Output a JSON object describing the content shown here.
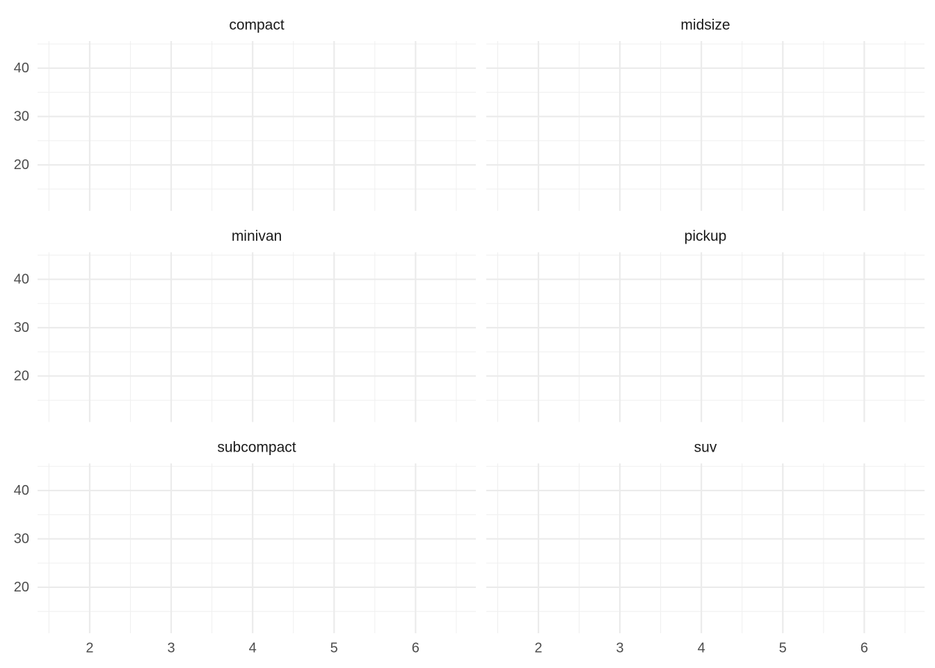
{
  "chart_data": [
    {
      "type": "scatter",
      "title": "compact",
      "xlim": [
        1.36,
        6.74
      ],
      "ylim": [
        10.5,
        45.6
      ],
      "xticks": [
        2,
        3,
        4,
        5,
        6
      ],
      "yticks": [
        20,
        30,
        40
      ],
      "xminor": [
        1.5,
        2.5,
        3.5,
        4.5,
        5.5,
        6.5
      ],
      "yminor": [
        15,
        25,
        35,
        45
      ],
      "grid": true,
      "series": []
    },
    {
      "type": "scatter",
      "title": "midsize",
      "xlim": [
        1.36,
        6.74
      ],
      "ylim": [
        10.5,
        45.6
      ],
      "xticks": [
        2,
        3,
        4,
        5,
        6
      ],
      "yticks": [
        20,
        30,
        40
      ],
      "xminor": [
        1.5,
        2.5,
        3.5,
        4.5,
        5.5,
        6.5
      ],
      "yminor": [
        15,
        25,
        35,
        45
      ],
      "grid": true,
      "series": []
    },
    {
      "type": "scatter",
      "title": "minivan",
      "xlim": [
        1.36,
        6.74
      ],
      "ylim": [
        10.5,
        45.6
      ],
      "xticks": [
        2,
        3,
        4,
        5,
        6
      ],
      "yticks": [
        20,
        30,
        40
      ],
      "xminor": [
        1.5,
        2.5,
        3.5,
        4.5,
        5.5,
        6.5
      ],
      "yminor": [
        15,
        25,
        35,
        45
      ],
      "grid": true,
      "series": []
    },
    {
      "type": "scatter",
      "title": "pickup",
      "xlim": [
        1.36,
        6.74
      ],
      "ylim": [
        10.5,
        45.6
      ],
      "xticks": [
        2,
        3,
        4,
        5,
        6
      ],
      "yticks": [
        20,
        30,
        40
      ],
      "xminor": [
        1.5,
        2.5,
        3.5,
        4.5,
        5.5,
        6.5
      ],
      "yminor": [
        15,
        25,
        35,
        45
      ],
      "grid": true,
      "series": []
    },
    {
      "type": "scatter",
      "title": "subcompact",
      "xlim": [
        1.36,
        6.74
      ],
      "ylim": [
        10.5,
        45.6
      ],
      "xticks": [
        2,
        3,
        4,
        5,
        6
      ],
      "yticks": [
        20,
        30,
        40
      ],
      "xminor": [
        1.5,
        2.5,
        3.5,
        4.5,
        5.5,
        6.5
      ],
      "yminor": [
        15,
        25,
        35,
        45
      ],
      "grid": true,
      "series": []
    },
    {
      "type": "scatter",
      "title": "suv",
      "xlim": [
        1.36,
        6.74
      ],
      "ylim": [
        10.5,
        45.6
      ],
      "xticks": [
        2,
        3,
        4,
        5,
        6
      ],
      "yticks": [
        20,
        30,
        40
      ],
      "xminor": [
        1.5,
        2.5,
        3.5,
        4.5,
        5.5,
        6.5
      ],
      "yminor": [
        15,
        25,
        35,
        45
      ],
      "grid": true,
      "series": []
    }
  ]
}
